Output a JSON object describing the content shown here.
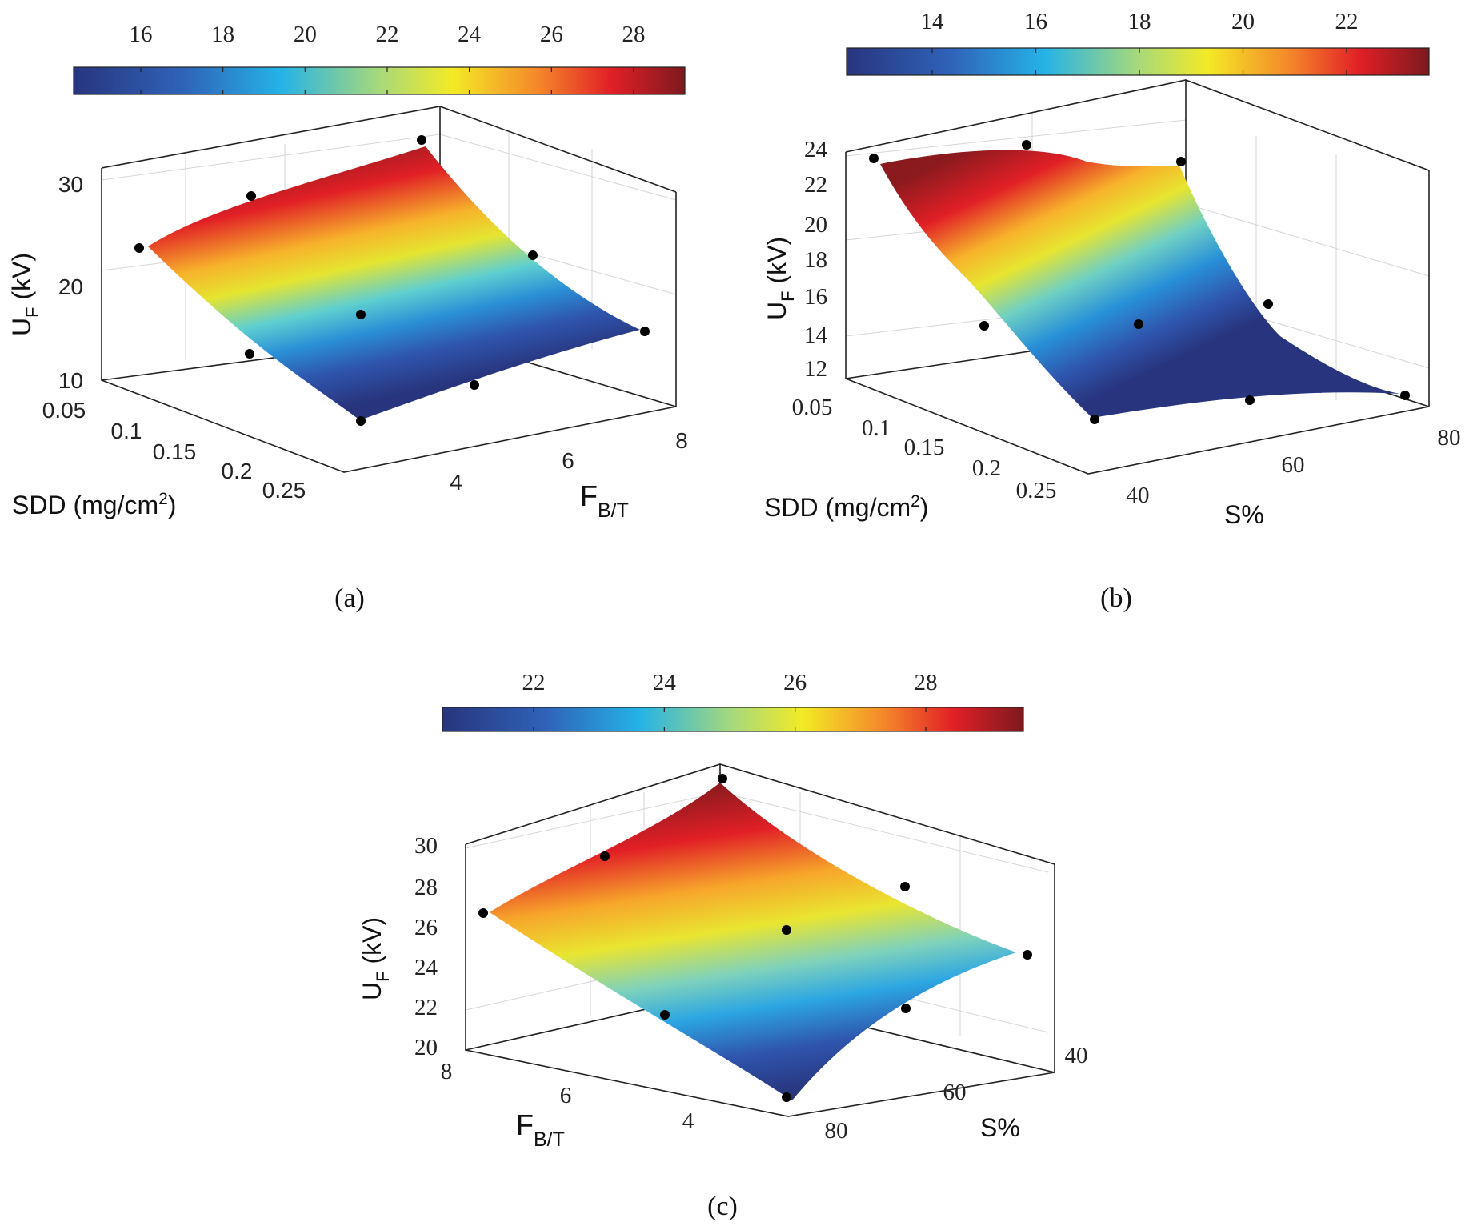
{
  "chart_data": [
    {
      "type": "surface",
      "panel_label": "(a)",
      "colorbar": {
        "ticks": [
          "16",
          "18",
          "20",
          "22",
          "24",
          "26",
          "28"
        ]
      },
      "z_axis": {
        "label_main": "U",
        "label_sub": "F",
        "label_unit": " (kV)",
        "ticks": [
          "10",
          "20",
          "30"
        ]
      },
      "x_axis": {
        "label_main": "SDD (mg/cm",
        "label_sup": "2",
        "label_end": ")",
        "ticks": [
          "0.05",
          "0.1",
          "0.15",
          "0.2",
          "0.25"
        ]
      },
      "y_axis": {
        "label_main": "F",
        "label_sub": "B/T",
        "ticks": [
          "4",
          "6",
          "8"
        ]
      },
      "points": 9
    },
    {
      "type": "surface",
      "panel_label": "(b)",
      "colorbar": {
        "ticks": [
          "14",
          "16",
          "18",
          "20",
          "22"
        ]
      },
      "z_axis": {
        "label_main": "U",
        "label_sub": "F",
        "label_unit": " (kV)",
        "ticks": [
          "12",
          "14",
          "16",
          "18",
          "20",
          "22",
          "24"
        ]
      },
      "x_axis": {
        "label_main": "SDD (mg/cm",
        "label_sup": "2",
        "label_end": ")",
        "ticks": [
          "0.05",
          "0.1",
          "0.15",
          "0.2",
          "0.25"
        ]
      },
      "y_axis": {
        "label_main": "S%",
        "ticks": [
          "40",
          "60",
          "80"
        ]
      },
      "points": 9
    },
    {
      "type": "surface",
      "panel_label": "(c)",
      "colorbar": {
        "ticks": [
          "22",
          "24",
          "26",
          "28"
        ]
      },
      "z_axis": {
        "label_main": "U",
        "label_sub": "F",
        "label_unit": " (kV)",
        "ticks": [
          "20",
          "22",
          "24",
          "26",
          "28",
          "30"
        ]
      },
      "x_axis": {
        "label_main": "F",
        "label_sub": "B/T",
        "ticks": [
          "8",
          "6",
          "4"
        ]
      },
      "y_axis": {
        "label_main": "S%",
        "ticks": [
          "80",
          "60",
          "40"
        ]
      },
      "points": 9
    }
  ]
}
